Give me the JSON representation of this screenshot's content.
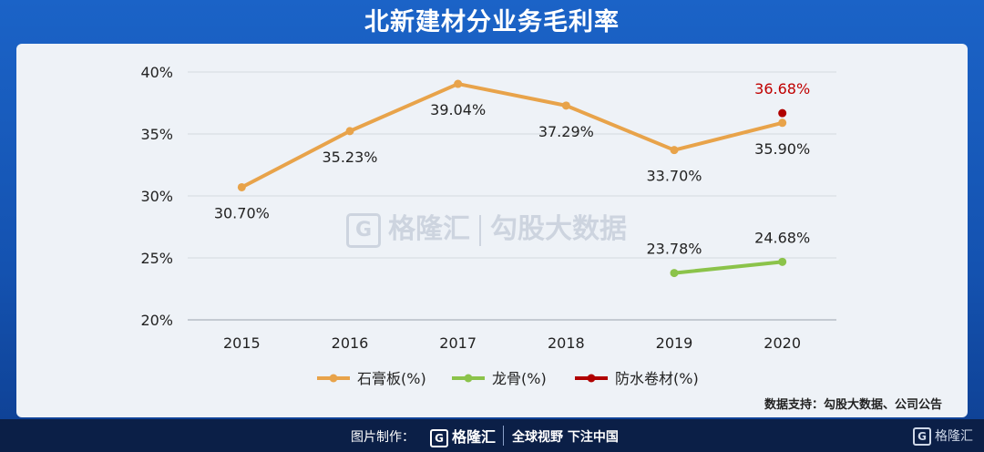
{
  "title": "北新建材分业务毛利率",
  "source": "数据支持：勾股大数据、公司公告",
  "watermark": {
    "brand": "格隆汇",
    "text": "勾股大数据"
  },
  "footer": {
    "credit": "图片制作：",
    "brand": "格隆汇",
    "slogan": "全球视野 下注中国",
    "logo_right": "格隆汇"
  },
  "chart_data": {
    "type": "line",
    "categories": [
      "2015",
      "2016",
      "2017",
      "2018",
      "2019",
      "2020"
    ],
    "ylim": [
      20,
      40
    ],
    "yticks": [
      "20%",
      "25%",
      "30%",
      "35%",
      "40%"
    ],
    "grid": true,
    "legend": "bottom",
    "series": [
      {
        "name": "石膏板(%)",
        "color": "#e8a34a",
        "values": [
          30.7,
          35.23,
          39.04,
          37.29,
          33.7,
          35.9
        ],
        "labels": [
          "30.70%",
          "35.23%",
          "39.04%",
          "37.29%",
          "33.70%",
          "35.90%"
        ],
        "label_color": "#222222"
      },
      {
        "name": "龙骨(%)",
        "color": "#8bc34a",
        "values": [
          null,
          null,
          null,
          null,
          23.78,
          24.68
        ],
        "labels": [
          null,
          null,
          null,
          null,
          "23.78%",
          "24.68%"
        ],
        "label_color": "#222222"
      },
      {
        "name": "防水卷材(%)",
        "color": "#b00000",
        "values": [
          null,
          null,
          null,
          null,
          null,
          36.68
        ],
        "labels": [
          null,
          null,
          null,
          null,
          null,
          "36.68%"
        ],
        "label_color": "#c00000"
      }
    ]
  }
}
